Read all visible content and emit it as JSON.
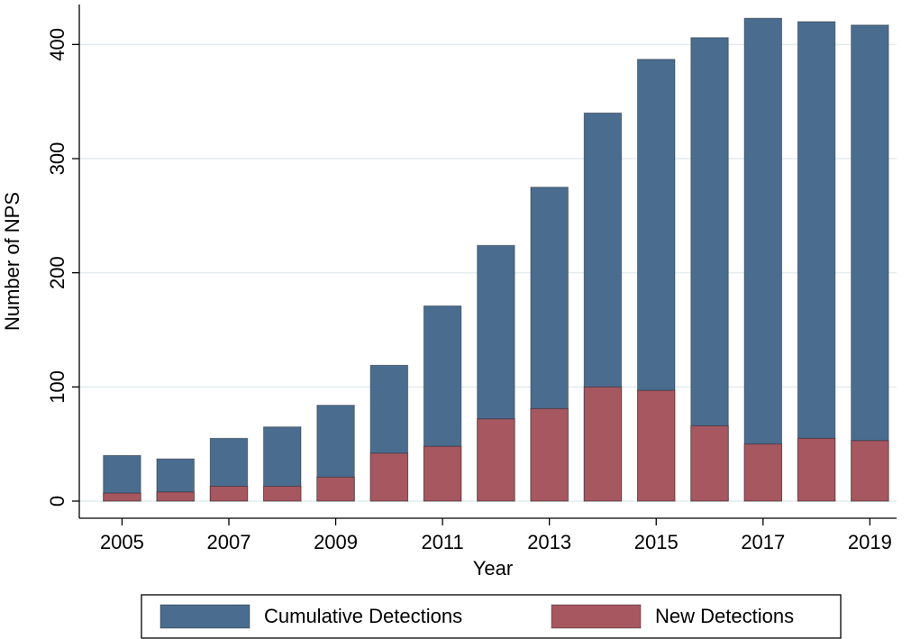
{
  "chart_data": {
    "type": "bar",
    "barmode": "overlay",
    "x_label": "Year",
    "y_label": "Number of NPS",
    "x": [
      2005,
      2006,
      2007,
      2008,
      2009,
      2010,
      2011,
      2012,
      2013,
      2014,
      2015,
      2016,
      2017,
      2018,
      2019
    ],
    "series": [
      {
        "name": "Cumulative Detections",
        "color": "#4a6d8f",
        "values": [
          40,
          37,
          55,
          65,
          84,
          119,
          171,
          224,
          275,
          340,
          387,
          406,
          423,
          420,
          417
        ]
      },
      {
        "name": "New Detections",
        "color": "#a6575f",
        "values": [
          7,
          8,
          13,
          13,
          21,
          42,
          48,
          72,
          81,
          100,
          97,
          66,
          50,
          55,
          53
        ]
      }
    ],
    "xlim": [
      2004.2,
      2019.5
    ],
    "xticks": [
      2005,
      2007,
      2009,
      2011,
      2013,
      2015,
      2017,
      2019
    ],
    "ylim": [
      -15,
      435
    ],
    "yticks": [
      0,
      100,
      200,
      300,
      400
    ],
    "grid": true,
    "legend": "bottom"
  }
}
